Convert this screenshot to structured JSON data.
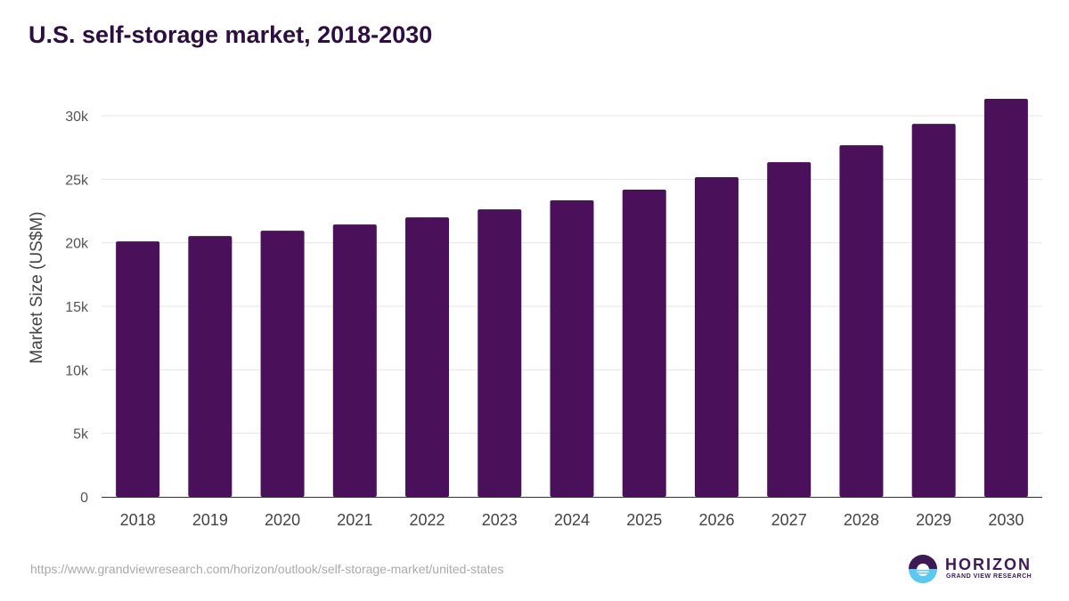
{
  "chart_data": {
    "type": "bar",
    "title": "U.S. self-storage market, 2018-2030",
    "xlabel": "",
    "ylabel": "Market Size (US$M)",
    "categories": [
      "2018",
      "2019",
      "2020",
      "2021",
      "2022",
      "2023",
      "2024",
      "2025",
      "2026",
      "2027",
      "2028",
      "2029",
      "2030"
    ],
    "values": [
      20110,
      20530,
      20950,
      21440,
      22000,
      22630,
      23340,
      24180,
      25160,
      26350,
      27680,
      29360,
      31330
    ],
    "ylim": [
      0,
      32000
    ],
    "yticks": [
      0,
      5000,
      10000,
      15000,
      20000,
      25000,
      30000
    ],
    "ytick_labels": [
      "0",
      "5k",
      "10k",
      "15k",
      "20k",
      "25k",
      "30k"
    ],
    "grid": true,
    "bar_color": "#4b105a"
  },
  "footer": {
    "source_url": "https://www.grandviewresearch.com/horizon/outlook/self-storage-market/united-states",
    "logo_name": "HORIZON",
    "logo_sub": "GRAND VIEW RESEARCH"
  }
}
